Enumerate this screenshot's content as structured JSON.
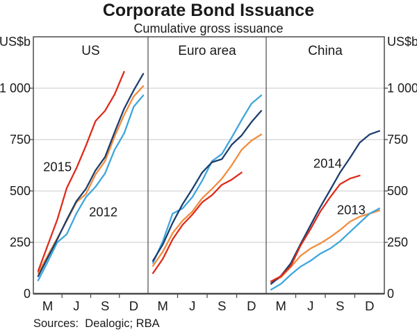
{
  "header": {
    "title": "Corporate Bond Issuance",
    "subtitle": "Cumulative gross issuance"
  },
  "footer": {
    "sources": "Sources:  Dealogic; RBA"
  },
  "chart_data": {
    "type": "line",
    "title": "Corporate Bond Issuance",
    "subtitle": "Cumulative gross issuance",
    "unit": "US$b",
    "ylim": [
      0,
      1250
    ],
    "yticks": [
      0,
      250,
      500,
      750,
      1000
    ],
    "ytick_labels": [
      "0",
      "250",
      "500",
      "750",
      "1 000"
    ],
    "grid": true,
    "x_axis": {
      "months_per_panel": 12,
      "shown_labels": [
        "M",
        "J",
        "S",
        "D"
      ],
      "shown_label_months": [
        3,
        6,
        9,
        12
      ]
    },
    "colors": {
      "2012": "#3DA6DD",
      "2013": "#F18C3D",
      "2014": "#1C3E6E",
      "2015": "#DE2B1B"
    },
    "panels": [
      {
        "title": "US",
        "series": [
          {
            "name": "2013",
            "values": [
              100,
              185,
              270,
              355,
              445,
              485,
              580,
              645,
              765,
              870,
              960,
              1010
            ]
          },
          {
            "name": "2012",
            "values": [
              65,
              155,
              250,
              290,
              390,
              470,
              520,
              585,
              700,
              780,
              910,
              965
            ]
          },
          {
            "name": "2014",
            "values": [
              85,
              175,
              265,
              360,
              450,
              510,
              600,
              665,
              785,
              900,
              990,
              1070
            ]
          },
          {
            "name": "2015",
            "values": [
              110,
              235,
              360,
              515,
              610,
              720,
              840,
              890,
              970,
              1080
            ]
          }
        ],
        "annotations": [
          {
            "text": "2015",
            "series": "2015",
            "fx": 0.21,
            "value": 618
          },
          {
            "text": "2012",
            "series": "2012",
            "fx": 0.61,
            "value": 399
          }
        ]
      },
      {
        "title": "Euro area",
        "series": [
          {
            "name": "2013",
            "values": [
              135,
              205,
              295,
              355,
              400,
              465,
              510,
              560,
              625,
              700,
              745,
              775
            ]
          },
          {
            "name": "2012",
            "values": [
              150,
              255,
              390,
              415,
              470,
              550,
              645,
              680,
              760,
              845,
              925,
              965
            ]
          },
          {
            "name": "2014",
            "values": [
              160,
              240,
              345,
              435,
              510,
              590,
              640,
              655,
              725,
              770,
              835,
              890
            ]
          },
          {
            "name": "2015",
            "values": [
              100,
              170,
              265,
              335,
              385,
              445,
              480,
              530,
              555,
              590
            ]
          }
        ],
        "annotations": []
      },
      {
        "title": "China",
        "series": [
          {
            "name": "2013",
            "values": [
              55,
              80,
              130,
              185,
              220,
              245,
              275,
              310,
              350,
              375,
              390,
              405
            ]
          },
          {
            "name": "2012",
            "values": [
              20,
              48,
              93,
              132,
              160,
              195,
              220,
              255,
              300,
              345,
              390,
              415
            ]
          },
          {
            "name": "2014",
            "values": [
              48,
              87,
              148,
              243,
              333,
              422,
              505,
              590,
              660,
              735,
              775,
              792
            ]
          },
          {
            "name": "2015",
            "values": [
              60,
              85,
              135,
              235,
              315,
              400,
              470,
              533,
              560,
              575
            ]
          }
        ],
        "annotations": [
          {
            "text": "2014",
            "series": "2014",
            "fx": 0.52,
            "value": 635
          },
          {
            "text": "2013",
            "series": "2013",
            "fx": 0.72,
            "value": 409
          }
        ]
      }
    ],
    "style_colors": {
      "grid": "#c9cacb",
      "frame": "#4a4a4b",
      "text": "#1a1a1a"
    }
  }
}
